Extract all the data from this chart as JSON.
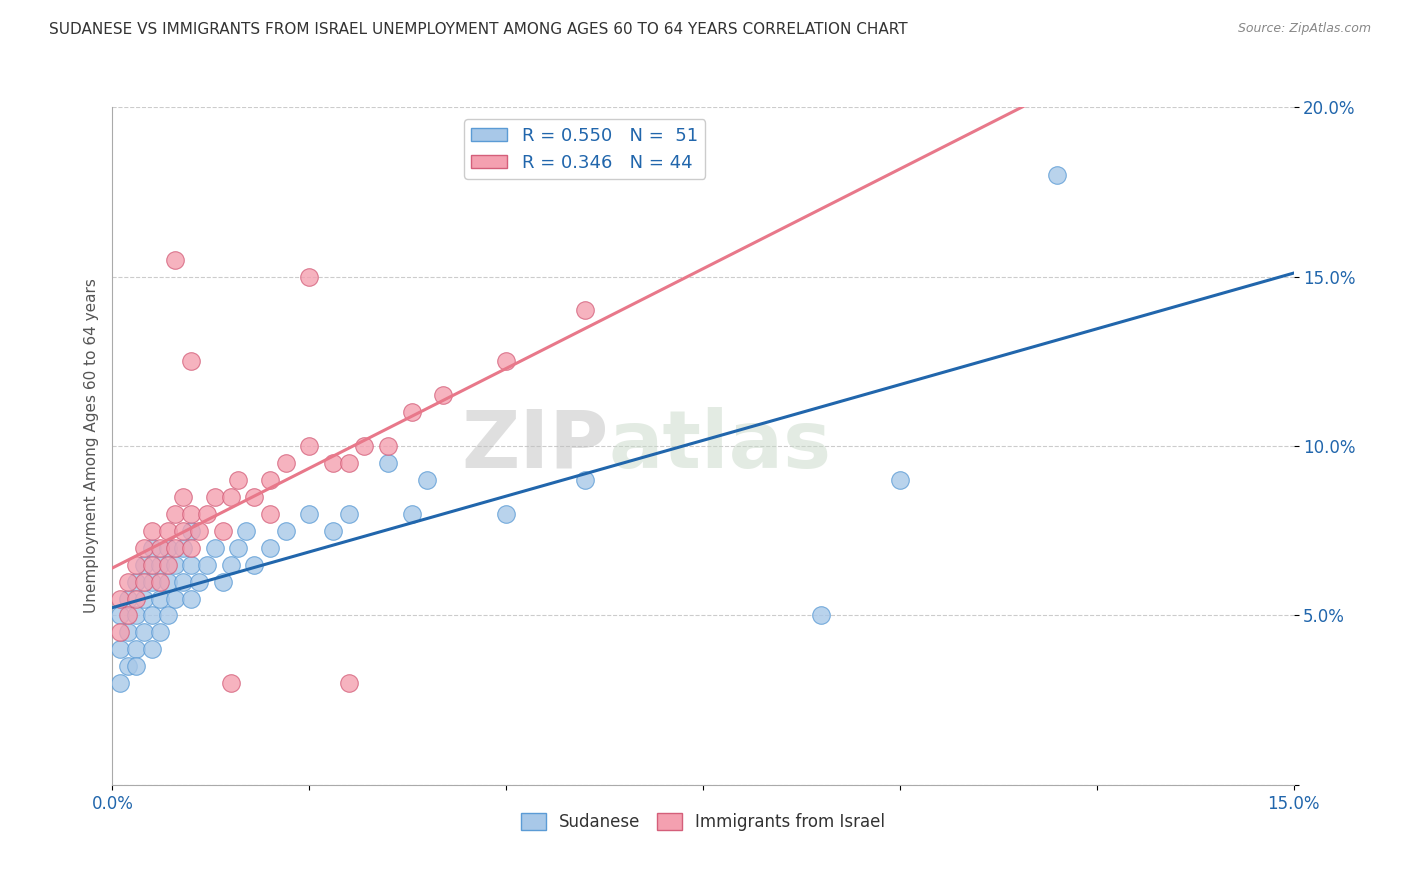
{
  "title": "SUDANESE VS IMMIGRANTS FROM ISRAEL UNEMPLOYMENT AMONG AGES 60 TO 64 YEARS CORRELATION CHART",
  "source_text": "Source: ZipAtlas.com",
  "ylabel": "Unemployment Among Ages 60 to 64 years",
  "xlim": [
    0,
    0.15
  ],
  "ylim": [
    0,
    0.2
  ],
  "xticks": [
    0.0,
    0.025,
    0.05,
    0.075,
    0.1,
    0.125,
    0.15
  ],
  "xtick_labels": [
    "0.0%",
    "",
    "",
    "",
    "",
    "",
    "15.0%"
  ],
  "yticks": [
    0.0,
    0.05,
    0.1,
    0.15,
    0.2
  ],
  "ytick_labels": [
    "",
    "5.0%",
    "10.0%",
    "15.0%",
    "20.0%"
  ],
  "watermark_text": "ZIPatlas",
  "legend_R1": "0.550",
  "legend_N1": "51",
  "legend_R2": "0.346",
  "legend_N2": "44",
  "series1_name": "Sudanese",
  "series2_name": "Immigrants from Israel",
  "series1_color": "#a8c8e8",
  "series2_color": "#f4a0b0",
  "series1_edge": "#5b9bd5",
  "series2_edge": "#d45f7a",
  "line1_color": "#2166ac",
  "line2_color": "#e8788a",
  "background_color": "#ffffff",
  "grid_color": "#cccccc",
  "title_color": "#333333",
  "axis_label_color": "#555555",
  "tick_color": "#2166ac",
  "sudanese_x": [
    0.001,
    0.001,
    0.001,
    0.002,
    0.002,
    0.002,
    0.003,
    0.003,
    0.003,
    0.003,
    0.004,
    0.004,
    0.004,
    0.005,
    0.005,
    0.005,
    0.005,
    0.006,
    0.006,
    0.006,
    0.007,
    0.007,
    0.007,
    0.008,
    0.008,
    0.009,
    0.009,
    0.01,
    0.01,
    0.01,
    0.011,
    0.012,
    0.013,
    0.014,
    0.015,
    0.016,
    0.017,
    0.018,
    0.02,
    0.022,
    0.025,
    0.028,
    0.03,
    0.035,
    0.038,
    0.04,
    0.05,
    0.06,
    0.09,
    0.1,
    0.12
  ],
  "sudanese_y": [
    0.03,
    0.04,
    0.05,
    0.035,
    0.045,
    0.055,
    0.04,
    0.05,
    0.06,
    0.035,
    0.045,
    0.055,
    0.065,
    0.04,
    0.05,
    0.06,
    0.07,
    0.045,
    0.055,
    0.065,
    0.05,
    0.06,
    0.07,
    0.055,
    0.065,
    0.06,
    0.07,
    0.055,
    0.065,
    0.075,
    0.06,
    0.065,
    0.07,
    0.06,
    0.065,
    0.07,
    0.075,
    0.065,
    0.07,
    0.075,
    0.08,
    0.075,
    0.08,
    0.095,
    0.08,
    0.09,
    0.08,
    0.09,
    0.05,
    0.09,
    0.18
  ],
  "israel_x": [
    0.001,
    0.001,
    0.002,
    0.002,
    0.003,
    0.003,
    0.004,
    0.004,
    0.005,
    0.005,
    0.006,
    0.006,
    0.007,
    0.007,
    0.008,
    0.008,
    0.009,
    0.009,
    0.01,
    0.01,
    0.011,
    0.012,
    0.013,
    0.014,
    0.015,
    0.016,
    0.018,
    0.02,
    0.022,
    0.025,
    0.028,
    0.032,
    0.038,
    0.042,
    0.05,
    0.06,
    0.03,
    0.035,
    0.02,
    0.025,
    0.008,
    0.01,
    0.015,
    0.03
  ],
  "israel_y": [
    0.045,
    0.055,
    0.05,
    0.06,
    0.055,
    0.065,
    0.06,
    0.07,
    0.065,
    0.075,
    0.06,
    0.07,
    0.065,
    0.075,
    0.07,
    0.08,
    0.075,
    0.085,
    0.07,
    0.08,
    0.075,
    0.08,
    0.085,
    0.075,
    0.085,
    0.09,
    0.085,
    0.09,
    0.095,
    0.1,
    0.095,
    0.1,
    0.11,
    0.115,
    0.125,
    0.14,
    0.095,
    0.1,
    0.08,
    0.15,
    0.155,
    0.125,
    0.03,
    0.03
  ]
}
